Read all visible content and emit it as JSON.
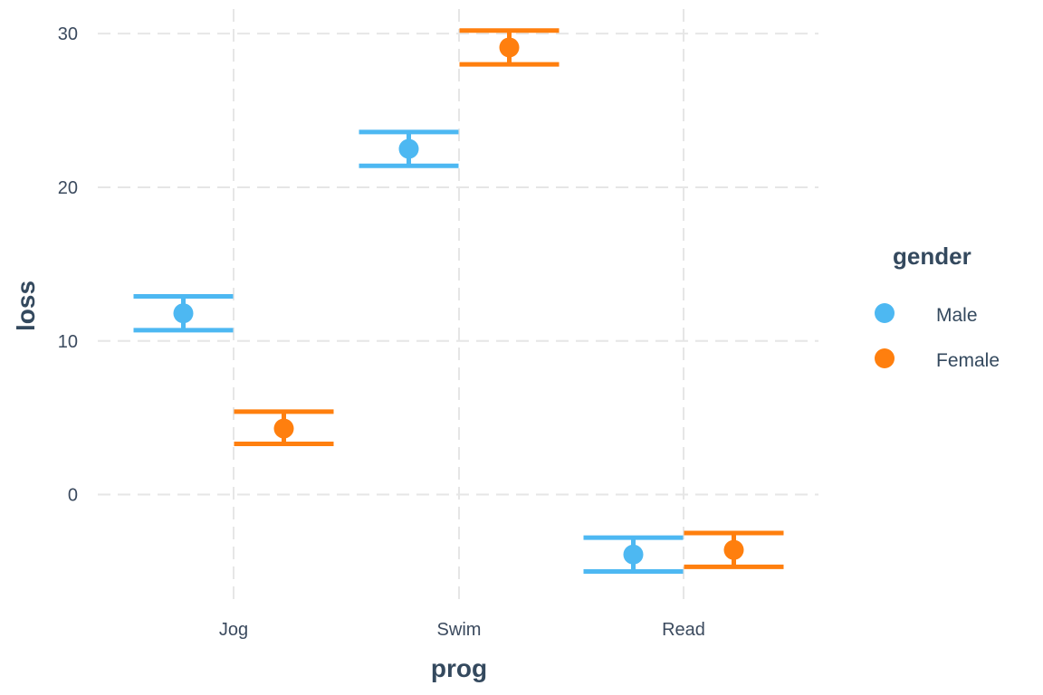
{
  "chart_data": {
    "type": "errorbar",
    "xlabel": "prog",
    "ylabel": "loss",
    "categories": [
      "Jog",
      "Swim",
      "Read"
    ],
    "ylim": [
      -6.8,
      31.6
    ],
    "yticks": [
      0,
      10,
      20,
      30
    ],
    "ytick_labels": [
      "0",
      "10",
      "20",
      "30"
    ],
    "grid": true,
    "legend": {
      "title": "gender",
      "position": "right"
    },
    "series": [
      {
        "name": "Male",
        "color": "#4db8f2",
        "points": [
          {
            "category": "Jog",
            "mean": 11.8,
            "lower": 10.7,
            "upper": 12.9
          },
          {
            "category": "Swim",
            "mean": 22.5,
            "lower": 21.4,
            "upper": 23.6
          },
          {
            "category": "Read",
            "mean": -3.9,
            "lower": -5.0,
            "upper": -2.8
          }
        ]
      },
      {
        "name": "Female",
        "color": "#ff7f0e",
        "points": [
          {
            "category": "Jog",
            "mean": 4.3,
            "lower": 3.3,
            "upper": 5.4
          },
          {
            "category": "Swim",
            "mean": 29.1,
            "lower": 28.0,
            "upper": 30.2
          },
          {
            "category": "Read",
            "mean": -3.6,
            "lower": -4.7,
            "upper": -2.5
          }
        ]
      }
    ]
  }
}
